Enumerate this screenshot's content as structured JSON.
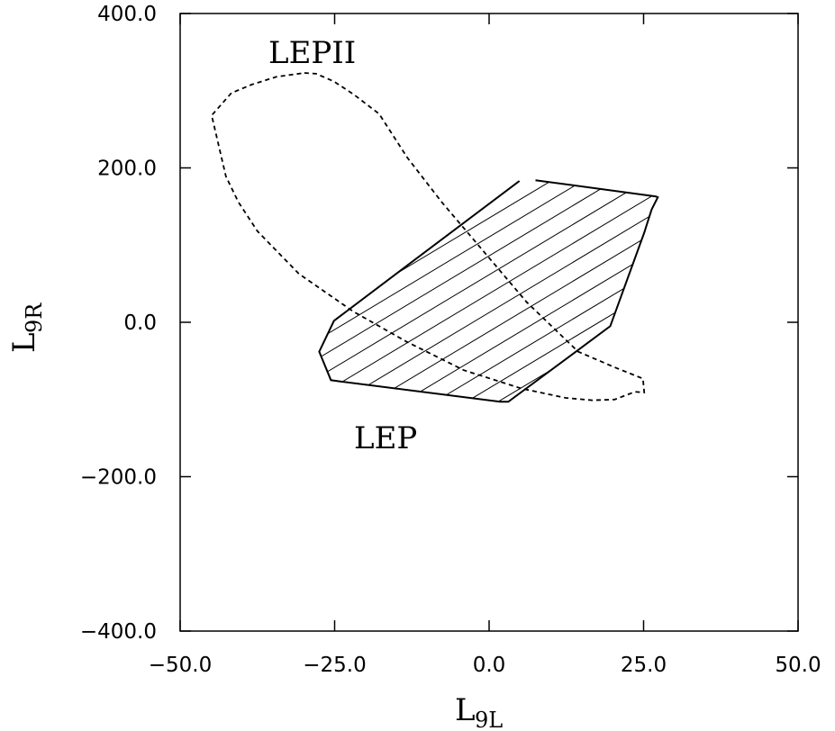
{
  "chart_data": {
    "type": "area",
    "xlabel": {
      "main": "L",
      "sub": "9L"
    },
    "ylabel": {
      "main": "L",
      "sub": "9R"
    },
    "xlim": [
      -50,
      50
    ],
    "ylim": [
      -400,
      400
    ],
    "x_ticks": [
      -50,
      -25,
      0,
      25,
      50
    ],
    "x_tick_labels": [
      "−50.0",
      "−25.0",
      "0.0",
      "25.0",
      "50.0"
    ],
    "y_ticks": [
      -400,
      -200,
      0,
      200,
      400
    ],
    "y_tick_labels": [
      "−400.0",
      "−200.0",
      "0.0",
      "200.0",
      "400.0"
    ],
    "grid": false,
    "series": [
      {
        "name": "LEP",
        "style": "solid-hatched",
        "points": [
          [
            4.9,
            183
          ],
          [
            -12.2,
            80
          ],
          [
            -25.1,
            2
          ],
          [
            -27.5,
            -38
          ],
          [
            -25.6,
            -75
          ],
          [
            -23.8,
            -77
          ],
          [
            1.8,
            -103
          ],
          [
            3.1,
            -103
          ],
          [
            19.6,
            -5
          ],
          [
            25.1,
            116
          ],
          [
            26.3,
            146
          ],
          [
            27.3,
            162
          ],
          [
            27.0,
            163
          ],
          [
            7.5,
            184
          ]
        ]
      },
      {
        "name": "LEPII",
        "style": "dashed",
        "points": [
          [
            -29.9,
            323
          ],
          [
            -28.0,
            322
          ],
          [
            -25.1,
            312
          ],
          [
            -21.9,
            295
          ],
          [
            -17.8,
            270
          ],
          [
            -13.2,
            213
          ],
          [
            -7.6,
            155
          ],
          [
            -0.7,
            90
          ],
          [
            6.1,
            26
          ],
          [
            14.4,
            -38
          ],
          [
            20.2,
            -58
          ],
          [
            24.9,
            -73
          ],
          [
            25.1,
            -91
          ],
          [
            23.6,
            -90
          ],
          [
            20.3,
            -100
          ],
          [
            16.7,
            -101
          ],
          [
            12.4,
            -98
          ],
          [
            5.3,
            -86
          ],
          [
            -4.1,
            -62
          ],
          [
            -13.4,
            -25
          ],
          [
            -22.0,
            14
          ],
          [
            -30.8,
            63
          ],
          [
            -37.5,
            118
          ],
          [
            -40.6,
            156
          ],
          [
            -42.6,
            189
          ],
          [
            -44.9,
            268
          ],
          [
            -41.7,
            297
          ],
          [
            -38.4,
            308
          ],
          [
            -34.4,
            318
          ]
        ]
      }
    ],
    "annotations": [
      {
        "text": "LEPII",
        "x": -34.5,
        "y": 345
      },
      {
        "text": "LEP",
        "x": -17.5,
        "y": -148
      }
    ]
  }
}
